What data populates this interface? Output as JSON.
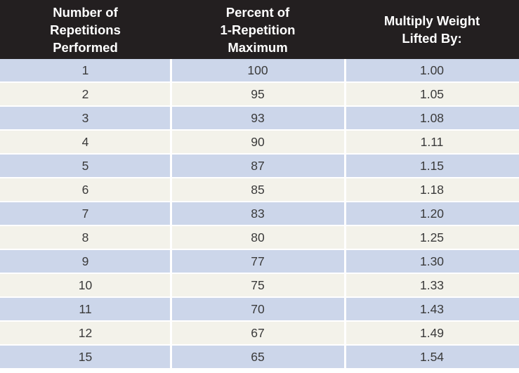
{
  "chart_data": {
    "type": "table",
    "columns": [
      "Number of\nRepetitions\nPerformed",
      "Percent of\n1-Repetition\nMaximum",
      "Multiply Weight\nLifted By:"
    ],
    "rows": [
      [
        "1",
        "100",
        "1.00"
      ],
      [
        "2",
        "95",
        "1.05"
      ],
      [
        "3",
        "93",
        "1.08"
      ],
      [
        "4",
        "90",
        "1.11"
      ],
      [
        "5",
        "87",
        "1.15"
      ],
      [
        "6",
        "85",
        "1.18"
      ],
      [
        "7",
        "83",
        "1.20"
      ],
      [
        "8",
        "80",
        "1.25"
      ],
      [
        "9",
        "77",
        "1.30"
      ],
      [
        "10",
        "75",
        "1.33"
      ],
      [
        "11",
        "70",
        "1.43"
      ],
      [
        "12",
        "67",
        "1.49"
      ],
      [
        "15",
        "65",
        "1.54"
      ]
    ]
  },
  "colors": {
    "header_bg": "#231f20",
    "header_text": "#ffffff",
    "row_odd": "#ccd6ea",
    "row_even": "#f3f2ea",
    "cell_text": "#3a3a3a"
  }
}
